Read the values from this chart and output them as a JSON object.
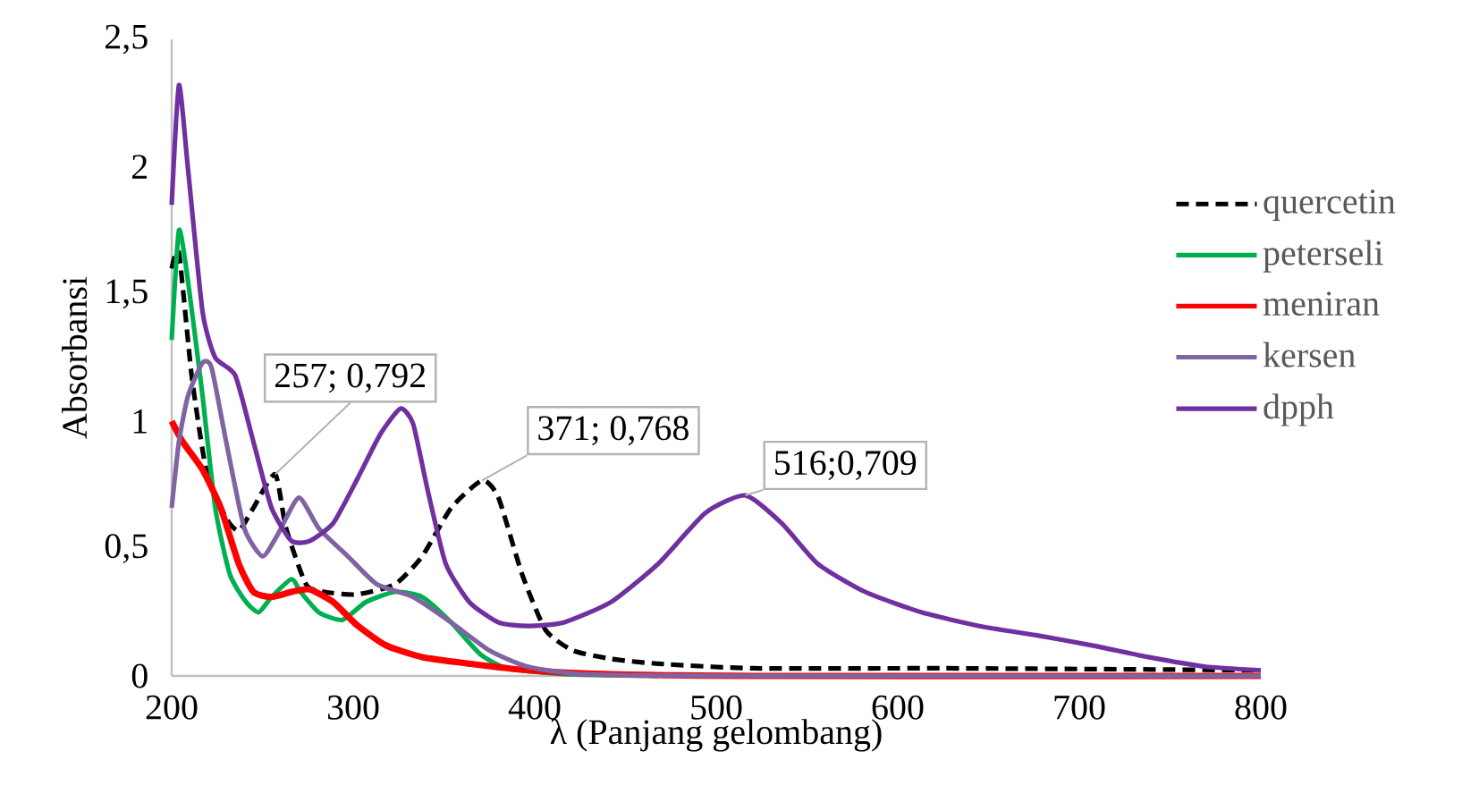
{
  "chart_data": {
    "type": "line",
    "xlabel": "λ (Panjang gelombang)",
    "ylabel": "Absorbansi",
    "xlim": [
      200,
      800
    ],
    "ylim": [
      0,
      2.5
    ],
    "xticks": [
      200,
      300,
      400,
      500,
      600,
      700,
      800
    ],
    "yticks": [
      0,
      {
        "value": 0.5,
        "label": "0,5"
      },
      1,
      {
        "value": 1.5,
        "label": "1,5"
      },
      2,
      {
        "value": 2.5,
        "label": "2,5"
      }
    ],
    "grid": false,
    "legend": "right",
    "series": [
      {
        "name": "quercetin",
        "color": "#000000",
        "line_style": "dashed",
        "x": [
          200,
          204,
          211,
          219,
          230,
          237,
          245,
          257,
          263,
          274,
          284,
          302,
          323,
          338,
          354,
          371,
          380,
          393,
          406,
          421,
          442,
          468,
          520,
          624,
          728,
          800
        ],
        "values": [
          1.6,
          1.66,
          1.18,
          0.81,
          0.62,
          0.57,
          0.66,
          0.792,
          0.58,
          0.36,
          0.33,
          0.32,
          0.36,
          0.47,
          0.66,
          0.768,
          0.7,
          0.4,
          0.18,
          0.1,
          0.067,
          0.048,
          0.03,
          0.03,
          0.026,
          0.022
        ]
      },
      {
        "name": "peterseli",
        "color": "#00b050",
        "x": [
          200,
          204,
          209,
          217,
          224,
          232,
          241,
          248,
          255,
          266,
          271,
          281,
          294,
          307,
          323,
          338,
          354,
          370,
          385,
          416,
          468
        ],
        "values": [
          1.32,
          1.75,
          1.55,
          1.1,
          0.66,
          0.4,
          0.29,
          0.25,
          0.31,
          0.38,
          0.33,
          0.25,
          0.22,
          0.29,
          0.33,
          0.31,
          0.21,
          0.085,
          0.03,
          0.007,
          0
        ]
      },
      {
        "name": "meniran",
        "color": "#ff0000",
        "x": [
          200,
          206,
          217,
          227,
          237,
          245,
          255,
          266,
          276,
          289,
          302,
          318,
          338,
          364,
          396,
          442,
          520,
          800
        ],
        "values": [
          1.0,
          0.92,
          0.81,
          0.66,
          0.44,
          0.33,
          0.31,
          0.33,
          0.34,
          0.29,
          0.2,
          0.12,
          0.074,
          0.048,
          0.022,
          0.007,
          0,
          0
        ]
      },
      {
        "name": "kersen",
        "color": "#8064a2",
        "x": [
          200,
          204,
          209,
          217,
          222,
          230,
          240,
          250,
          258,
          270,
          281,
          297,
          313,
          333,
          354,
          375,
          396,
          427,
          520,
          800
        ],
        "values": [
          0.66,
          0.92,
          1.1,
          1.23,
          1.21,
          0.92,
          0.58,
          0.47,
          0.55,
          0.7,
          0.58,
          0.47,
          0.36,
          0.31,
          0.21,
          0.1,
          0.037,
          0.007,
          0,
          0
        ]
      },
      {
        "name": "dpph",
        "color": "#7030a0",
        "x": [
          200,
          204,
          209,
          217,
          224,
          235,
          245,
          255,
          266,
          276,
          289,
          302,
          315,
          326,
          333,
          341,
          351,
          364,
          380,
          396,
          416,
          442,
          468,
          494,
          516,
          536,
          556,
          582,
          613,
          645,
          676,
          707,
          738,
          769,
          800
        ],
        "values": [
          1.85,
          2.32,
          1.99,
          1.43,
          1.25,
          1.18,
          0.92,
          0.66,
          0.53,
          0.53,
          0.6,
          0.77,
          0.95,
          1.05,
          0.99,
          0.73,
          0.44,
          0.29,
          0.21,
          0.196,
          0.21,
          0.29,
          0.44,
          0.64,
          0.709,
          0.6,
          0.44,
          0.33,
          0.25,
          0.196,
          0.16,
          0.12,
          0.074,
          0.037,
          0.022
        ]
      }
    ],
    "annotations": [
      {
        "text": "257; 0,792",
        "x": 257,
        "y": 0.792
      },
      {
        "text": "371; 0,768",
        "x": 371,
        "y": 0.768
      },
      {
        "text": "516;0,709",
        "x": 516,
        "y": 0.709
      }
    ]
  }
}
